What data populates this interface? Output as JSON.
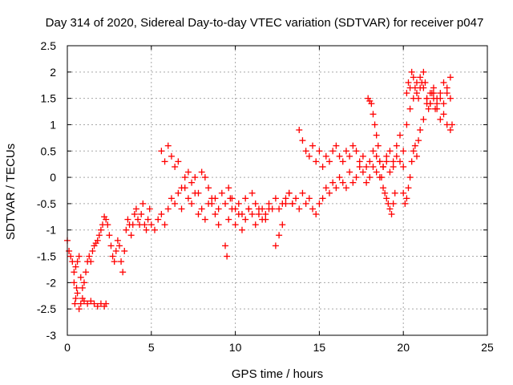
{
  "chart_data": {
    "type": "scatter",
    "title": "Day 314 of 2020, Sidereal Day-to-day VTEC variation (SDTVAR) for receiver p047",
    "xlabel": "GPS time / hours",
    "ylabel": "SDTVAR / TECUs",
    "xlim": [
      0,
      25
    ],
    "ylim": [
      -3,
      2.5
    ],
    "xticks": [
      0,
      5,
      10,
      15,
      20,
      25
    ],
    "xtick_labels": [
      "0",
      "5",
      "10",
      "15",
      "20",
      "25"
    ],
    "yticks": [
      -3,
      -2.5,
      -2,
      -1.5,
      -1,
      -0.5,
      0,
      0.5,
      1,
      1.5,
      2,
      2.5
    ],
    "ytick_labels": [
      "-3",
      "-2.5",
      "-2",
      "-1.5",
      "-1",
      "-0.5",
      "0",
      "0.5",
      "1",
      "1.5",
      "2",
      "2.5"
    ],
    "grid": true,
    "marker": "plus",
    "color": "#ff0000",
    "series": [
      {
        "name": "SDTVAR",
        "x": [
          0.0,
          0.1,
          0.2,
          0.3,
          0.4,
          0.5,
          0.6,
          0.7,
          0.8,
          0.9,
          1.0,
          1.1,
          1.2,
          1.3,
          1.4,
          1.5,
          0.4,
          0.45,
          0.5,
          0.55,
          0.6,
          0.7,
          0.8,
          0.9,
          1.0,
          1.2,
          1.4,
          1.6,
          1.8,
          2.0,
          2.2,
          2.3,
          1.6,
          1.7,
          1.8,
          1.9,
          2.0,
          2.1,
          2.2,
          2.3,
          2.4,
          2.5,
          2.6,
          2.7,
          2.8,
          2.9,
          3.0,
          3.1,
          3.2,
          3.3,
          3.4,
          3.5,
          3.6,
          3.7,
          3.8,
          3.9,
          4.0,
          4.1,
          4.2,
          4.3,
          4.4,
          4.5,
          4.6,
          4.7,
          4.8,
          4.9,
          5.0,
          5.2,
          5.4,
          5.6,
          5.8,
          6.0,
          6.2,
          6.4,
          6.6,
          6.8,
          7.0,
          7.2,
          7.4,
          7.6,
          7.8,
          8.0,
          8.2,
          8.4,
          8.6,
          8.8,
          9.0,
          5.6,
          5.8,
          6.0,
          6.2,
          6.4,
          6.6,
          6.8,
          7.0,
          7.2,
          7.4,
          7.6,
          7.8,
          8.0,
          8.2,
          8.4,
          8.6,
          8.8,
          9.0,
          9.2,
          9.4,
          9.6,
          9.8,
          10.0,
          10.2,
          10.4,
          10.6,
          10.8,
          11.0,
          11.2,
          11.4,
          11.6,
          11.8,
          12.0,
          12.2,
          12.4,
          12.6,
          12.8,
          13.0,
          13.2,
          13.4,
          13.6,
          13.8,
          14.0,
          14.2,
          14.4,
          14.6,
          14.8,
          15.0,
          15.2,
          15.4,
          15.6,
          15.8,
          16.0,
          16.2,
          16.4,
          16.6,
          16.8,
          17.0,
          17.2,
          17.4,
          17.6,
          17.8,
          18.0,
          18.2,
          18.4,
          18.6,
          18.8,
          19.0,
          19.2,
          19.4,
          19.6,
          19.8,
          20.0,
          13.8,
          14.0,
          14.2,
          14.4,
          14.6,
          14.8,
          15.0,
          15.2,
          15.4,
          15.6,
          15.8,
          16.0,
          16.2,
          16.4,
          16.6,
          16.8,
          17.0,
          17.2,
          17.4,
          17.6,
          17.8,
          18.0,
          18.2,
          18.4,
          18.6,
          18.8,
          19.0,
          19.2,
          19.4,
          19.6,
          19.8,
          20.0,
          20.2,
          20.4,
          20.6,
          20.8,
          21.0,
          21.2,
          21.4,
          21.6,
          21.8,
          22.0,
          22.2,
          22.4,
          22.6,
          22.8,
          9.4,
          9.5,
          9.6,
          9.7,
          9.8,
          10.0,
          10.2,
          10.4,
          10.6,
          10.8,
          11.0,
          11.2,
          11.4,
          11.6,
          11.8,
          12.0,
          12.4,
          12.6,
          12.8,
          13.0,
          13.2,
          13.4,
          17.9,
          18.0,
          18.1,
          18.2,
          18.3,
          18.4,
          18.5,
          18.6,
          18.7,
          18.8,
          18.9,
          19.0,
          19.1,
          19.2,
          19.3,
          19.4,
          19.5,
          20.2,
          20.3,
          20.4,
          20.5,
          20.6,
          20.7,
          20.8,
          20.9,
          21.0,
          21.1,
          21.2,
          21.3,
          21.4,
          21.5,
          21.6,
          21.7,
          21.8,
          21.9,
          22.0,
          22.2,
          22.4,
          22.6,
          22.8,
          22.9,
          20.0,
          20.1,
          20.2,
          20.3,
          20.4,
          20.5,
          20.6,
          20.7,
          20.8,
          20.9,
          21.0,
          21.2,
          21.4,
          21.6,
          21.8,
          22.0,
          22.2,
          22.4,
          22.6,
          22.8
        ],
        "y": [
          -1.2,
          -1.4,
          -1.5,
          -1.6,
          -1.8,
          -1.7,
          -1.6,
          -1.5,
          -1.9,
          -2.1,
          -2.0,
          -1.8,
          -1.6,
          -1.5,
          -1.6,
          -1.4,
          -2.0,
          -2.4,
          -2.3,
          -2.1,
          -2.2,
          -2.5,
          -2.4,
          -2.3,
          -2.35,
          -2.4,
          -2.35,
          -2.4,
          -2.45,
          -2.4,
          -2.45,
          -2.4,
          -1.3,
          -1.25,
          -1.2,
          -1.1,
          -1.0,
          -0.9,
          -0.75,
          -0.8,
          -0.9,
          -1.1,
          -1.3,
          -1.5,
          -1.6,
          -1.4,
          -1.2,
          -1.3,
          -1.6,
          -1.8,
          -1.4,
          -1.0,
          -0.8,
          -0.9,
          -1.1,
          -0.9,
          -0.7,
          -0.6,
          -0.8,
          -0.9,
          -0.7,
          -0.5,
          -0.9,
          -1.0,
          -0.8,
          -0.6,
          -0.9,
          -1.0,
          -0.8,
          -0.7,
          -0.9,
          -0.6,
          -0.4,
          -0.5,
          -0.3,
          -0.6,
          -0.2,
          -0.4,
          -0.5,
          -0.3,
          -0.7,
          -0.6,
          -0.8,
          -0.5,
          -0.4,
          -0.7,
          -0.9,
          0.5,
          0.3,
          0.6,
          0.4,
          0.2,
          0.3,
          -0.2,
          0.0,
          0.1,
          -0.1,
          0.0,
          -0.3,
          0.1,
          0.0,
          -0.2,
          -0.5,
          -0.4,
          -0.6,
          -0.3,
          -0.5,
          -0.2,
          -0.4,
          -0.6,
          -0.5,
          -0.7,
          -0.4,
          -0.6,
          -0.3,
          -0.5,
          -0.7,
          -0.6,
          -0.8,
          -0.5,
          -0.6,
          -0.4,
          -0.6,
          -0.5,
          -0.4,
          -0.3,
          -0.5,
          -0.4,
          -0.6,
          -0.3,
          -0.5,
          -0.4,
          -0.6,
          -0.7,
          -0.5,
          -0.4,
          -0.2,
          -0.3,
          -0.1,
          -0.2,
          0.0,
          -0.1,
          -0.2,
          0.1,
          -0.1,
          0.0,
          0.2,
          0.1,
          -0.1,
          0.0,
          0.2,
          0.1,
          0.0,
          0.2,
          0.3,
          0.1,
          0.2,
          0.4,
          0.3,
          0.2,
          0.9,
          0.7,
          0.5,
          0.4,
          0.6,
          0.3,
          0.5,
          0.2,
          0.4,
          0.3,
          0.5,
          0.6,
          0.4,
          0.3,
          0.5,
          0.4,
          0.6,
          0.5,
          0.3,
          0.4,
          0.2,
          0.3,
          0.5,
          0.4,
          0.3,
          0.2,
          0.4,
          0.5,
          0.3,
          0.6,
          0.8,
          0.5,
          1.0,
          1.3,
          1.5,
          1.8,
          1.9,
          1.7,
          1.5,
          1.4,
          1.6,
          1.3,
          1.1,
          1.4,
          1.6,
          1.5,
          -1.3,
          -1.5,
          -0.8,
          -0.4,
          -0.6,
          -0.9,
          -0.7,
          -1.0,
          -0.8,
          -0.6,
          -0.7,
          -0.9,
          -0.6,
          -0.8,
          -0.7,
          -0.6,
          -1.3,
          -1.1,
          -0.9,
          -0.5,
          -0.3,
          -0.5,
          1.5,
          1.45,
          1.4,
          1.2,
          1.0,
          0.8,
          0.6,
          0.3,
          0.0,
          -0.2,
          -0.3,
          -0.4,
          -0.5,
          -0.6,
          -0.7,
          -0.5,
          -0.3,
          1.6,
          1.8,
          1.7,
          2.0,
          1.9,
          1.7,
          1.6,
          1.5,
          1.7,
          1.8,
          2.0,
          1.8,
          1.5,
          1.3,
          1.4,
          1.6,
          1.5,
          1.3,
          1.4,
          1.5,
          1.2,
          1.0,
          0.9,
          1.0,
          -0.3,
          -0.5,
          -0.4,
          -0.2,
          0.0,
          0.3,
          0.5,
          0.6,
          0.4,
          0.7,
          0.9,
          1.1,
          1.4,
          1.6,
          1.7,
          1.5,
          1.6,
          1.8,
          1.7,
          1.9
        ]
      }
    ]
  }
}
